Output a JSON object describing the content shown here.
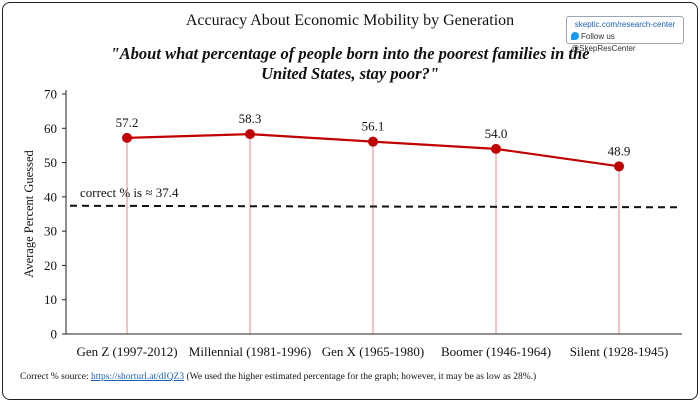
{
  "header": {
    "title": "Accuracy About Economic Mobility by Generation",
    "subtitle": "\"About what percentage of people born into the poorest families in the United States, stay poor?\""
  },
  "badge": {
    "site": "skeptic.com/research-center",
    "follow": "Follow us @SkepResCenter",
    "icon": "twitter-bird-icon"
  },
  "footnote": {
    "prefix": "Correct % source:",
    "link": "https://shorturl.at/dIQZ3",
    "suffix": " (We used the higher estimated percentage for the graph; however, it may be as low as 28%.)"
  },
  "chart_data": {
    "type": "line",
    "categories": [
      "Gen Z (1997-2012)",
      "Millennial (1981-1996)",
      "Gen X (1965-1980)",
      "Boomer (1946-1964)",
      "Silent (1928-1945)"
    ],
    "values": [
      57.2,
      58.3,
      56.1,
      54.0,
      48.9
    ],
    "data_labels": [
      "57.2",
      "58.3",
      "56.1",
      "54.0",
      "48.9"
    ],
    "ylabel": "Average Percent Guessed",
    "xlabel": "",
    "ylim": [
      0,
      70
    ],
    "yticks": [
      0,
      10,
      20,
      30,
      40,
      50,
      60,
      70
    ],
    "reference_line": {
      "value": 37.4,
      "label": "correct % is ≈ 37.4",
      "style": "dashed"
    },
    "series_color": "#c00000",
    "drop_lines": true,
    "grid": false
  }
}
